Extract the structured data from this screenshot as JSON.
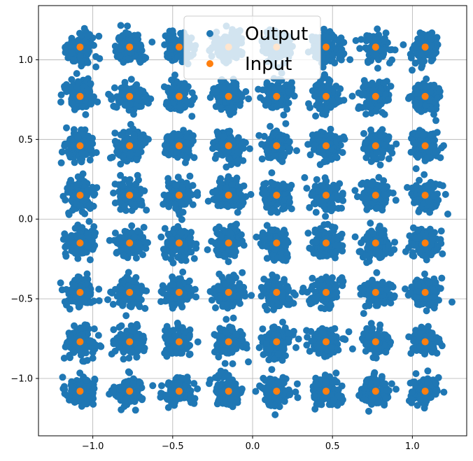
{
  "chart_data": {
    "type": "scatter",
    "title": "",
    "xlabel": "",
    "ylabel": "",
    "xlim": [
      -1.34,
      1.34
    ],
    "ylim": [
      -1.36,
      1.34
    ],
    "grid": true,
    "legend_placement": "top-center",
    "x_ticks": [
      -1.0,
      -0.5,
      0.0,
      0.5,
      1.0
    ],
    "x_tick_labels": [
      "−1.0",
      "−0.5",
      "0.0",
      "0.5",
      "1.0"
    ],
    "y_ticks": [
      -1.0,
      -0.5,
      0.0,
      0.5,
      1.0
    ],
    "y_tick_labels": [
      "−1.0",
      "−0.5",
      "0.0",
      "0.5",
      "1.0"
    ],
    "constellation_levels": [
      -1.08,
      -0.77,
      -0.46,
      -0.15,
      0.15,
      0.46,
      0.77,
      1.08
    ],
    "output_cluster_spread": 0.045,
    "output_points_per_symbol": 120,
    "series": [
      {
        "name": "Output",
        "color": "#1f77b4"
      },
      {
        "name": "Input",
        "color": "#ff7f0e"
      }
    ]
  }
}
